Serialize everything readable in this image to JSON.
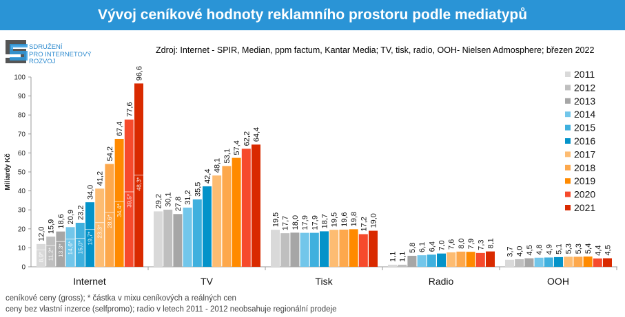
{
  "title": "Vývoj ceníkové hodnoty reklamního prostoru podle mediatypů",
  "logo_text": [
    "SDRUŽENÍ",
    "PRO INTERNETOVÝ",
    "ROZVOJ"
  ],
  "source": "Zdroj: Internet - SPIR, Median, ppm factum, Kantar Media; TV, tisk, radio, OOH- Nielsen Admosphere; březen 2022",
  "notes": [
    "ceníkové ceny (gross); * částka v mixu ceníkových a reálných cen",
    "ceny bez vlastní inzerce (selfpromo); radio v letech 2011 - 2012 neobsahuje regionální prodeje"
  ],
  "chart_data": {
    "type": "bar",
    "ylabel": "Miliardy Kč",
    "ylim": [
      0,
      100
    ],
    "yticks": [
      0,
      10,
      20,
      30,
      40,
      50,
      60,
      70,
      80,
      90,
      100
    ],
    "grid": false,
    "legend_position": "right",
    "categories": [
      "Internet",
      "TV",
      "Tisk",
      "Radio",
      "OOH"
    ],
    "series": [
      {
        "name": "2011",
        "color": "#d9d9d9",
        "values": [
          12.0,
          29.2,
          19.5,
          1.1,
          3.7
        ]
      },
      {
        "name": "2012",
        "color": "#bfbfbf",
        "values": [
          15.9,
          30.1,
          17.7,
          1.1,
          4.0
        ]
      },
      {
        "name": "2013",
        "color": "#a6a6a6",
        "values": [
          18.6,
          27.8,
          18.0,
          5.8,
          4.5
        ]
      },
      {
        "name": "2014",
        "color": "#72c6ea",
        "values": [
          20.9,
          31.2,
          17.9,
          6.1,
          4.8
        ]
      },
      {
        "name": "2015",
        "color": "#3fb0de",
        "values": [
          23.2,
          35.5,
          17.9,
          6.4,
          4.9
        ]
      },
      {
        "name": "2016",
        "color": "#0493c9",
        "values": [
          34.0,
          42.4,
          18.7,
          7.0,
          5.1
        ]
      },
      {
        "name": "2017",
        "color": "#fdbc72",
        "values": [
          41.2,
          48.1,
          19.5,
          7.6,
          5.3
        ]
      },
      {
        "name": "2018",
        "color": "#fda84c",
        "values": [
          54.2,
          53.1,
          19.6,
          8.0,
          5.3
        ]
      },
      {
        "name": "2019",
        "color": "#ff8a00",
        "values": [
          67.4,
          57.4,
          19.8,
          7.9,
          5.4
        ]
      },
      {
        "name": "2020",
        "color": "#f64a2c",
        "values": [
          77.6,
          62.2,
          17.2,
          7.3,
          4.4
        ]
      },
      {
        "name": "2021",
        "color": "#d92a00",
        "values": [
          96.6,
          64.4,
          19.0,
          8.1,
          4.5
        ]
      }
    ],
    "internet_mix_values": [
      8.9,
      11.2,
      13.3,
      14.6,
      15.0,
      19.7,
      23.3,
      28.6,
      34.4,
      39.5,
      48.3
    ],
    "internet_mix_labels": [
      "8,9*",
      "11,2*",
      "13,3*",
      "14,6*",
      "15,0*",
      "19,7*",
      "23,3*",
      "28,6*",
      "34,4*",
      "39,5*",
      "48,3*"
    ]
  }
}
